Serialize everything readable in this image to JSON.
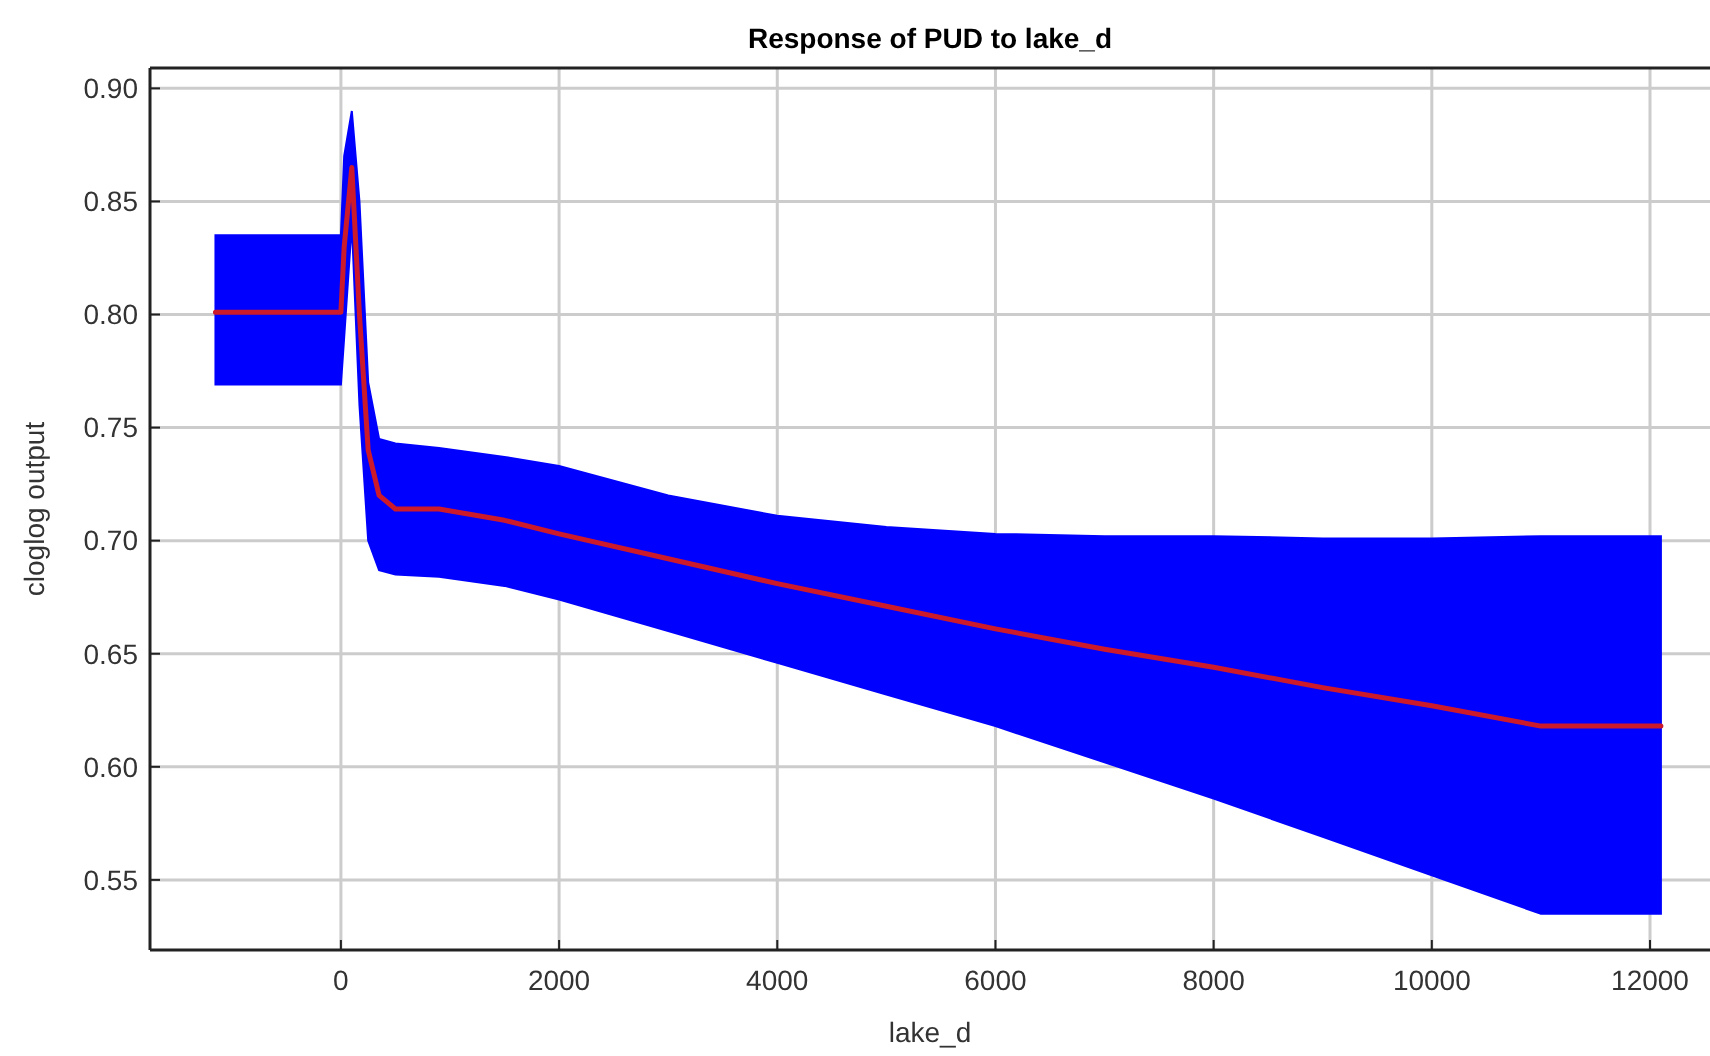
{
  "chart_data": {
    "type": "line",
    "title": "Response of PUD to lake_d",
    "xlabel": "lake_d",
    "ylabel": "cloglog output",
    "x": [
      -1150,
      0,
      30,
      100,
      170,
      250,
      350,
      500,
      900,
      1500,
      2000,
      3000,
      4000,
      5000,
      6000,
      7000,
      8000,
      9000,
      10000,
      11000,
      12100
    ],
    "series": [
      {
        "color": "#cc1a2a",
        "values": [
          0.801,
          0.801,
          0.83,
          0.865,
          0.8,
          0.74,
          0.72,
          0.714,
          0.714,
          0.709,
          0.703,
          0.692,
          0.681,
          0.671,
          0.661,
          0.652,
          0.644,
          0.635,
          0.627,
          0.618,
          0.618
        ],
        "upper": [
          0.835,
          0.835,
          0.87,
          0.89,
          0.85,
          0.77,
          0.745,
          0.743,
          0.741,
          0.737,
          0.733,
          0.72,
          0.711,
          0.706,
          0.703,
          0.702,
          0.702,
          0.701,
          0.701,
          0.702,
          0.702
        ],
        "lower": [
          0.769,
          0.769,
          0.79,
          0.84,
          0.76,
          0.7,
          0.687,
          0.685,
          0.684,
          0.68,
          0.674,
          0.66,
          0.646,
          0.632,
          0.618,
          0.602,
          0.586,
          0.569,
          0.552,
          0.535,
          0.535
        ]
      }
    ],
    "xlim": [
      -1750,
      12550
    ],
    "xticks": [
      0,
      2000,
      4000,
      6000,
      8000,
      10000,
      12000
    ],
    "ylim": [
      0.519,
      0.909
    ],
    "yticks": [
      {
        "value": 0.55,
        "label": "0.55"
      },
      {
        "value": 0.6,
        "label": "0.60"
      },
      {
        "value": 0.65,
        "label": "0.65"
      },
      {
        "value": 0.7,
        "label": "0.70"
      },
      {
        "value": 0.75,
        "label": "0.75"
      },
      {
        "value": 0.8,
        "label": "0.80"
      },
      {
        "value": 0.85,
        "label": "0.85"
      },
      {
        "value": 0.9,
        "label": "0.90"
      }
    ],
    "grid": true,
    "line_style": "solid"
  }
}
